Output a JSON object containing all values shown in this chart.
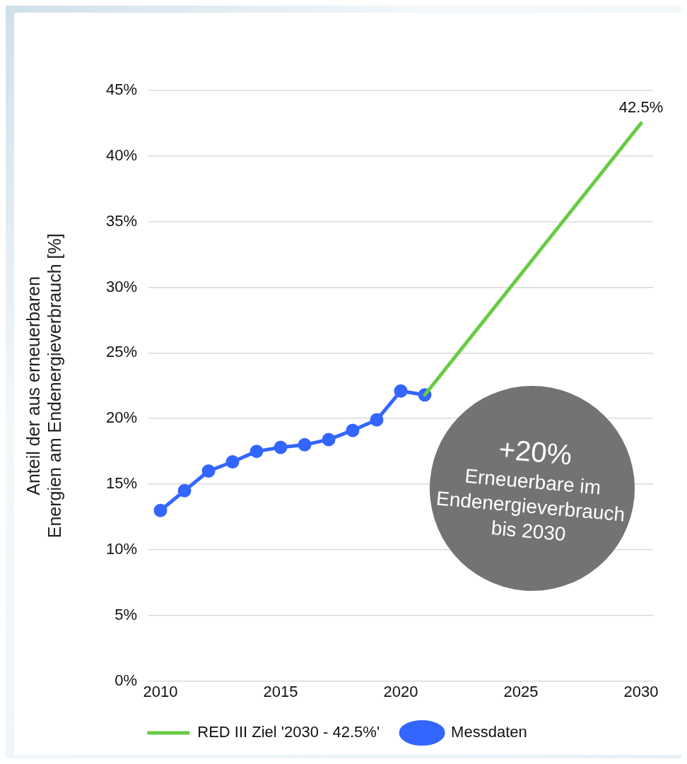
{
  "chart_data": {
    "type": "line",
    "ylabel": "Anteil der aus erneuerbaren Energien am Endenergieverbrauch [%]",
    "xlim": [
      2009.5,
      2030.5
    ],
    "xticks": [
      2010,
      2015,
      2020,
      2025,
      2030
    ],
    "ylim": [
      0,
      45
    ],
    "yticks": [
      {
        "value": 0,
        "label": "0%"
      },
      {
        "value": 5,
        "label": "5%"
      },
      {
        "value": 10,
        "label": "10%"
      },
      {
        "value": 15,
        "label": "15%"
      },
      {
        "value": 20,
        "label": "20%"
      },
      {
        "value": 25,
        "label": "25%"
      },
      {
        "value": 30,
        "label": "30%"
      },
      {
        "value": 35,
        "label": "35%"
      },
      {
        "value": 40,
        "label": "40%"
      },
      {
        "value": 45,
        "label": "45%"
      }
    ],
    "grid": "y",
    "legend": "bottom",
    "series": [
      {
        "name": "Messdaten",
        "color": "#3366ff",
        "marker": "circle",
        "x": [
          2010,
          2011,
          2012,
          2013,
          2014,
          2015,
          2016,
          2017,
          2018,
          2019,
          2020,
          2021
        ],
        "values": [
          13.0,
          14.5,
          16.0,
          16.7,
          17.5,
          17.8,
          18.0,
          18.4,
          19.1,
          19.9,
          22.1,
          21.8
        ]
      },
      {
        "name": "RED III Ziel '2030 - 42.5%'",
        "color": "#66cc44",
        "marker": "none",
        "x": [
          2021,
          2030
        ],
        "values": [
          21.8,
          42.5
        ]
      }
    ],
    "annotations": [
      {
        "text": "42.5%",
        "x": 2030,
        "y": 42.5
      },
      "+20%",
      "Erneuerbare im Endenergieverbrauch bis 2030"
    ]
  }
}
